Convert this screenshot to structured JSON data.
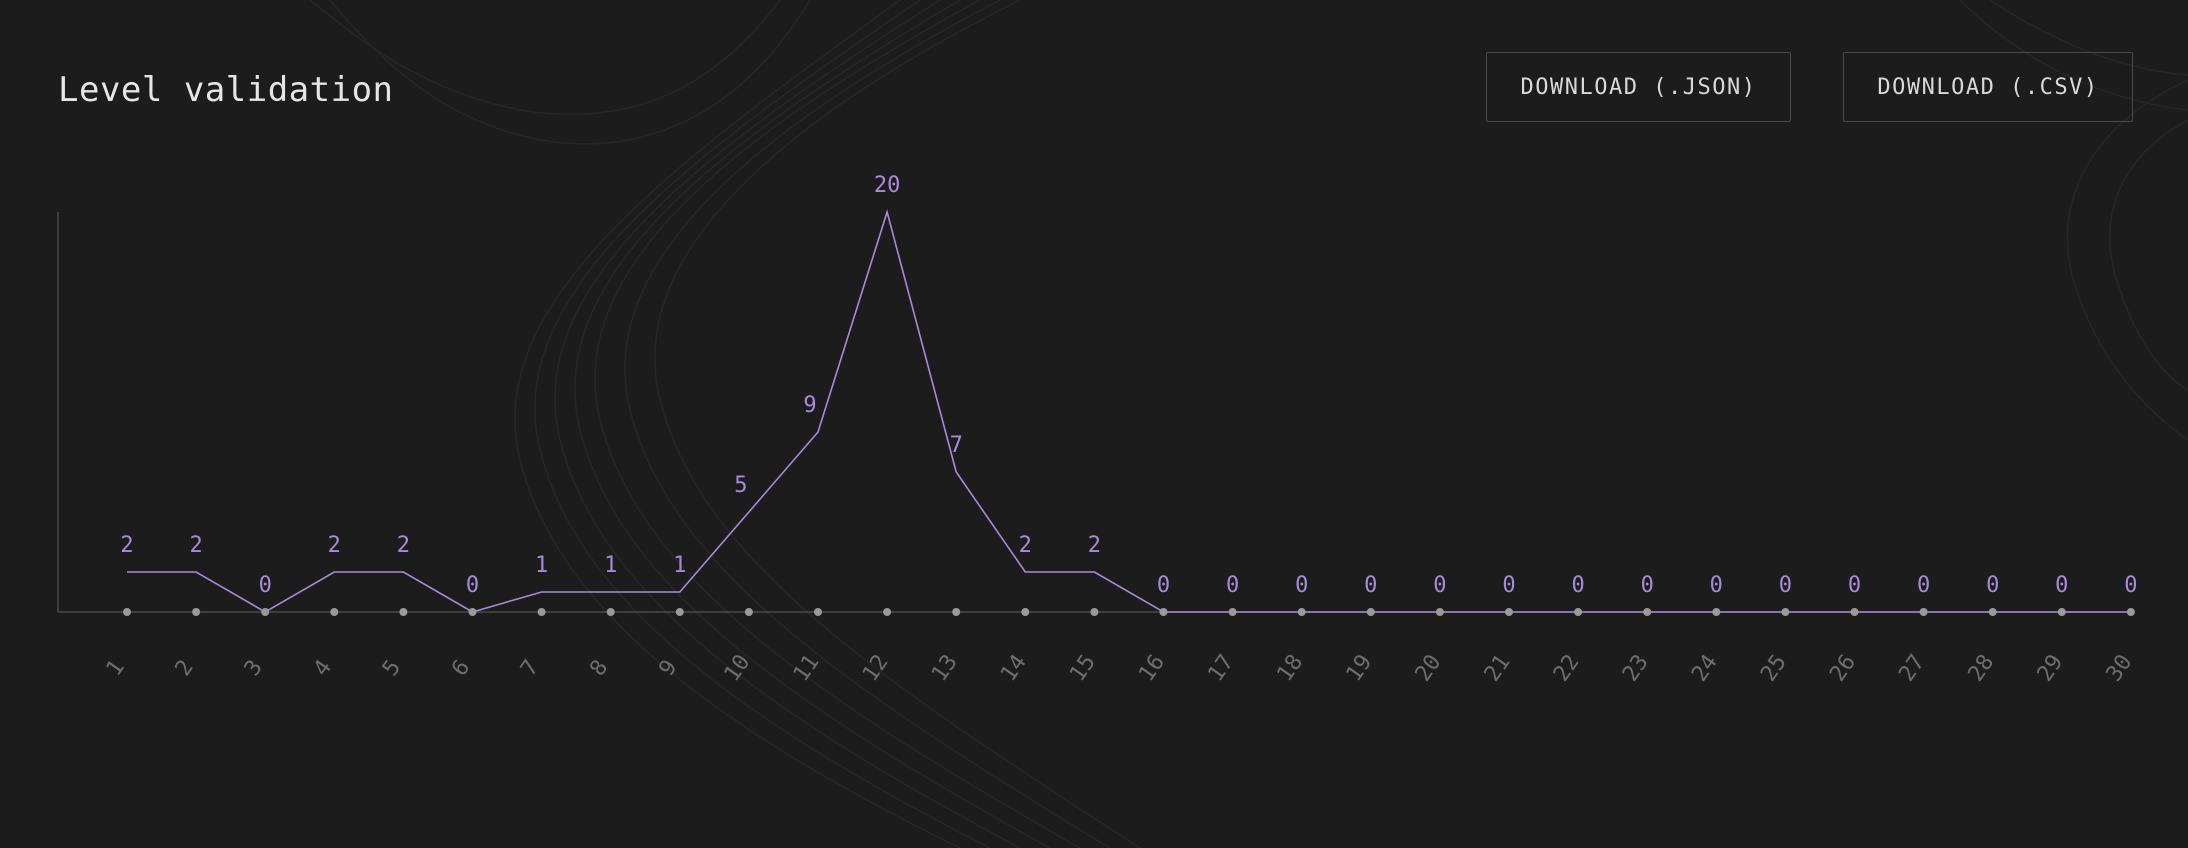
{
  "header": {
    "title": "Level validation",
    "download_json_label": "DOWNLOAD (.JSON)",
    "download_csv_label": "DOWNLOAD (.CSV)"
  },
  "colors": {
    "background": "#1c1c1c",
    "series": "#a78bdb",
    "data_label": "#a78bdb",
    "axis": "#4a4a4a",
    "tick_label": "#6e6e6e",
    "point": "#9a9a9a",
    "title": "#e6e6e6"
  },
  "chart_data": {
    "type": "line",
    "title": "",
    "xlabel": "",
    "ylabel": "",
    "x": [
      1,
      2,
      3,
      4,
      5,
      6,
      7,
      8,
      9,
      10,
      11,
      12,
      13,
      14,
      15,
      16,
      17,
      18,
      19,
      20,
      21,
      22,
      23,
      24,
      25,
      26,
      27,
      28,
      29,
      30
    ],
    "series": [
      {
        "values": [
          2,
          2,
          0,
          2,
          2,
          0,
          1,
          1,
          1,
          5,
          9,
          20,
          7,
          2,
          2,
          0,
          0,
          0,
          0,
          0,
          0,
          0,
          0,
          0,
          0,
          0,
          0,
          0,
          0,
          0
        ]
      }
    ],
    "ylim": [
      0,
      20
    ],
    "grid": false,
    "data_labels": true,
    "data_labels_shown": [
      "2",
      "2",
      "0",
      "2",
      "2",
      "0",
      "1",
      "1",
      "1",
      "5",
      "9",
      "20",
      "7",
      "2",
      "2",
      "0",
      "0",
      "0",
      "0",
      "0",
      "0",
      "0",
      "0",
      "0",
      "0",
      "0",
      "0",
      "0",
      "0",
      "0"
    ],
    "tick_labels": [
      "1",
      "2",
      "3",
      "4",
      "5",
      "6",
      "7",
      "8",
      "9",
      "10",
      "11",
      "12",
      "13",
      "14",
      "15",
      "16",
      "17",
      "18",
      "19",
      "20",
      "21",
      "22",
      "23",
      "24",
      "25",
      "26",
      "27",
      "28",
      "29",
      "30"
    ],
    "legend": "none"
  }
}
